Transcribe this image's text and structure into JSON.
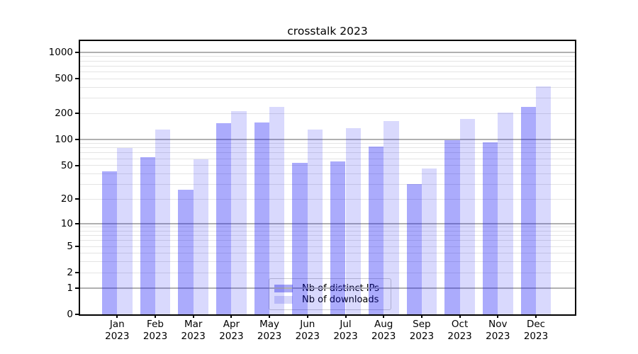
{
  "title": "crosstalk 2023",
  "chart_data": {
    "type": "bar",
    "title": "crosstalk 2023",
    "categories": [
      "Jan 2023",
      "Feb 2023",
      "Mar 2023",
      "Apr 2023",
      "May 2023",
      "Jun 2023",
      "Jul 2023",
      "Aug 2023",
      "Sep 2023",
      "Oct 2023",
      "Nov 2023",
      "Dec 2023"
    ],
    "series": [
      {
        "name": "Nb of distinct IPs",
        "color": "#a8a8f5",
        "fill": "rgba(10,10,245,0.34)",
        "values": [
          43,
          62,
          26,
          155,
          157,
          54,
          56,
          83,
          30,
          98,
          93,
          240
        ]
      },
      {
        "name": "Nb of downloads",
        "color": "#d8d8fa",
        "fill": "rgba(10,10,245,0.155)",
        "values": [
          80,
          130,
          59,
          213,
          237,
          130,
          136,
          164,
          46,
          173,
          205,
          410
        ]
      }
    ],
    "yscale": "log1p",
    "y_ticks": [
      0,
      1,
      2,
      5,
      10,
      20,
      50,
      100,
      200,
      500,
      1000
    ],
    "ylim": [
      0,
      1350
    ],
    "grid": "horizontal, major at powers of 10, minor at 2-9 multiples",
    "legend_position": "lower center inside plot"
  },
  "legend": {
    "items": [
      {
        "label": "Nb of distinct IPs"
      },
      {
        "label": "Nb of downloads"
      }
    ]
  },
  "colors": {
    "bar_ips": "#a8a8f5",
    "bar_downloads": "#d8d8fa",
    "grid_major": "#b0b0b0",
    "grid_minor": "#e4e4e4",
    "axis": "#000000",
    "background": "#ffffff"
  }
}
